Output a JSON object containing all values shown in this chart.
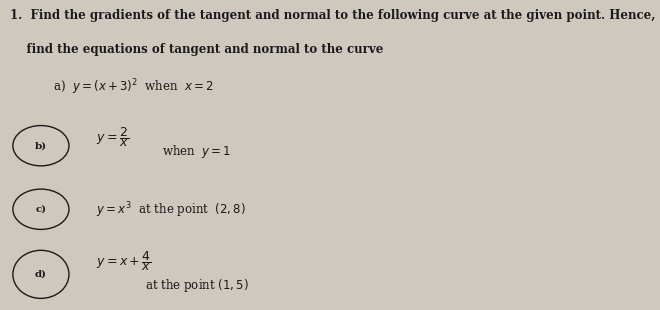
{
  "background_color": "#cec8bf",
  "font_color": "#1a1a1a",
  "font_size_title": 8.5,
  "font_size_body": 8.5,
  "title_line1": "1.  Find the gradients of the tangent and normal to the following curve at the given point. Hence,",
  "title_line2": "    find the equations of tangent and normal to the curve",
  "item_a_label": "a)",
  "item_a_eq": "$y = (x+3)^{2}$  when  $x = 2$",
  "item_b_label": "b)",
  "item_b_eq_frac": "$y = \\dfrac{2}{x}$",
  "item_b_when": "when  $y = 1$",
  "item_c_label": "c)",
  "item_c_eq": "$y = x^{3}$  at the point  $(2,8)$",
  "item_d_label": "d)",
  "item_d_eq_frac": "$y = x + \\dfrac{4}{x}$",
  "item_d_point": "at the point $(1,5)$"
}
